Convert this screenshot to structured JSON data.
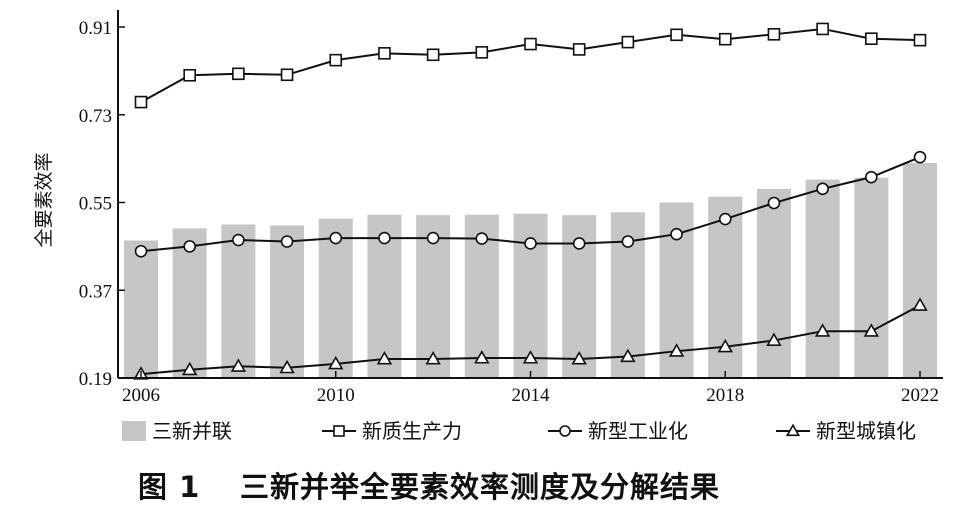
{
  "chart_data": {
    "type": "bar+line",
    "title": "",
    "caption_number": "图 1",
    "caption_text": "三新并举全要素效率测度及分解结果",
    "ylabel": "全要素效率",
    "xlabel": "",
    "ylim": [
      0.19,
      0.91
    ],
    "yticks": [
      0.19,
      0.37,
      0.55,
      0.73,
      0.91
    ],
    "xlim": [
      2006,
      2022
    ],
    "xticks": [
      2006,
      2010,
      2014,
      2018,
      2022
    ],
    "grid": false,
    "legend_placement": "bottom",
    "x": [
      2006,
      2007,
      2008,
      2009,
      2010,
      2011,
      2012,
      2013,
      2014,
      2015,
      2016,
      2017,
      2018,
      2019,
      2020,
      2021,
      2022
    ],
    "series": [
      {
        "name": "三新并联",
        "kind": "bar",
        "color": "#c6c6c6",
        "values": [
          0.472,
          0.497,
          0.505,
          0.503,
          0.517,
          0.525,
          0.524,
          0.525,
          0.527,
          0.524,
          0.53,
          0.55,
          0.562,
          0.578,
          0.597,
          0.601,
          0.631
        ]
      },
      {
        "name": "新质生产力",
        "kind": "line",
        "marker": "square",
        "color": "#111111",
        "values": [
          0.756,
          0.811,
          0.814,
          0.812,
          0.842,
          0.856,
          0.853,
          0.858,
          0.875,
          0.864,
          0.879,
          0.894,
          0.885,
          0.895,
          0.906,
          0.886,
          0.883
        ]
      },
      {
        "name": "新型工业化",
        "kind": "line",
        "marker": "circle",
        "color": "#111111",
        "values": [
          0.45,
          0.46,
          0.473,
          0.47,
          0.477,
          0.477,
          0.477,
          0.476,
          0.466,
          0.466,
          0.47,
          0.485,
          0.516,
          0.549,
          0.578,
          0.602,
          0.643
        ]
      },
      {
        "name": "新型城镇化",
        "kind": "line",
        "marker": "triangle",
        "color": "#111111",
        "values": [
          0.198,
          0.207,
          0.214,
          0.211,
          0.219,
          0.229,
          0.229,
          0.231,
          0.231,
          0.229,
          0.234,
          0.245,
          0.254,
          0.267,
          0.286,
          0.286,
          0.339
        ]
      }
    ]
  }
}
